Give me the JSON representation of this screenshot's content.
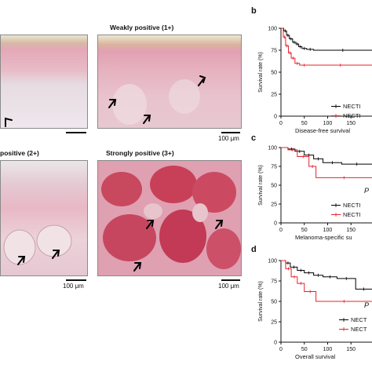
{
  "histology": {
    "panels": [
      {
        "title": "",
        "scale": ""
      },
      {
        "title": "Weakly positive (1+)",
        "scale": "100 μm"
      },
      {
        "title": "positive (2+)",
        "scale": "100 μm"
      },
      {
        "title": "Strongly positive (3+)",
        "scale": "100 μm"
      }
    ],
    "colors": {
      "stain": "#c8485e",
      "tissue": "#e6c6cf",
      "stroma": "#eadde4",
      "arrow": "#000000"
    }
  },
  "survival": {
    "panel_letters": [
      "b",
      "c",
      "d"
    ],
    "y_tick_labels": [
      "0",
      "25",
      "50",
      "75",
      "100"
    ],
    "x_tick_labels": [
      "0",
      "50",
      "100",
      "150"
    ],
    "ylabel": "Survival rate (%)",
    "legend_entries": [
      "NECTI",
      "NECTI"
    ],
    "legend_entries_d": [
      "NECT",
      "NECT"
    ],
    "p_label": "P",
    "xlabels": [
      "Disease-free survival",
      "Melanoma-specific su",
      "Overall survival"
    ],
    "colors": {
      "low": "#000000",
      "high": "#e8202a"
    }
  },
  "chart_data": [
    {
      "type": "line",
      "xlabel": "Disease-free survival",
      "ylabel": "Survival rate (%)",
      "xlim": [
        0,
        195
      ],
      "ylim": [
        0,
        100
      ],
      "series": [
        {
          "x": [
            0,
            6,
            12,
            18,
            25,
            32,
            38,
            45,
            55,
            70,
            195
          ],
          "y": [
            100,
            97,
            92,
            88,
            84,
            82,
            79,
            77,
            76,
            75,
            75
          ]
        },
        {
          "x": [
            0,
            5,
            10,
            16,
            22,
            30,
            40,
            60,
            195
          ],
          "y": [
            100,
            90,
            80,
            72,
            66,
            60,
            58,
            58,
            58
          ]
        }
      ]
    },
    {
      "type": "line",
      "xlabel": "Melanoma-specific su",
      "ylabel": "Survival rate (%)",
      "xlim": [
        0,
        195
      ],
      "ylim": [
        0,
        100
      ],
      "series": [
        {
          "x": [
            0,
            15,
            30,
            50,
            70,
            90,
            130,
            195
          ],
          "y": [
            100,
            98,
            95,
            90,
            85,
            80,
            78,
            78
          ]
        },
        {
          "x": [
            0,
            15,
            35,
            60,
            75,
            195
          ],
          "y": [
            100,
            97,
            88,
            75,
            60,
            60
          ]
        }
      ]
    },
    {
      "type": "line",
      "xlabel": "Overall survival",
      "ylabel": "Survival rate (%)",
      "xlim": [
        0,
        195
      ],
      "ylim": [
        0,
        100
      ],
      "series": [
        {
          "x": [
            0,
            10,
            20,
            35,
            50,
            70,
            90,
            120,
            160,
            195
          ],
          "y": [
            100,
            97,
            92,
            88,
            85,
            82,
            80,
            78,
            65,
            65
          ]
        },
        {
          "x": [
            0,
            10,
            22,
            35,
            50,
            75,
            195
          ],
          "y": [
            100,
            90,
            80,
            72,
            62,
            50,
            50
          ]
        }
      ]
    }
  ]
}
